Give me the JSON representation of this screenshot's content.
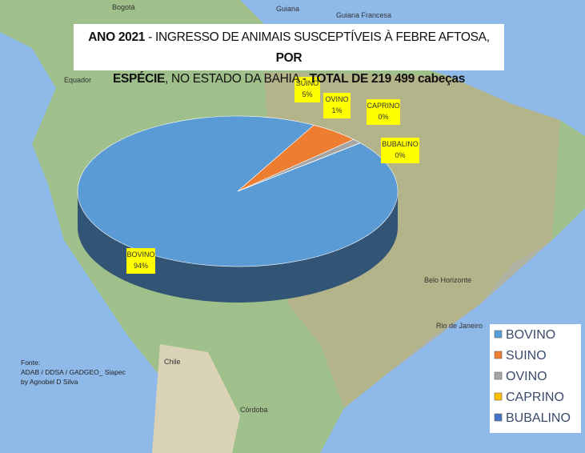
{
  "chart_data": {
    "type": "pie3d",
    "title_lines": [
      [
        {
          "text": "ANO 2021",
          "bold": true
        },
        {
          "text": " - INGRESSO DE ANIMAIS SUSCEPTÍVEIS À FEBRE AFTOSA, ",
          "bold": false
        },
        {
          "text": "POR",
          "bold": true
        }
      ],
      [
        {
          "text": "ESPÉCIE",
          "bold": true
        },
        {
          "text": ", NO ESTADO DA BAHIA - ",
          "bold": false
        },
        {
          "text": "TOTAL DE 219 499 cabeças",
          "bold": true
        }
      ]
    ],
    "categories": [
      "BOVINO",
      "SUINO",
      "OVINO",
      "CAPRINO",
      "BUBALINO"
    ],
    "values": [
      94,
      5,
      1,
      0,
      0
    ],
    "value_labels": [
      "94%",
      "5%",
      "1%",
      "0%",
      "0%"
    ],
    "colors": [
      "#5b9bd5",
      "#ed7d31",
      "#a5a5a5",
      "#ffc000",
      "#4472c4"
    ],
    "legend": "lower right"
  },
  "source": [
    "Fonte:",
    "ADAB / DDSA / GADGEO_ Siapec",
    "by Agnobel D Silva"
  ],
  "map_labels": [
    "Bogotá",
    "Guiana",
    "Guiana Francesa",
    "Equador",
    "Belo Horizonte",
    "Rio de Janeiro",
    "Chile",
    "Córdoba"
  ]
}
